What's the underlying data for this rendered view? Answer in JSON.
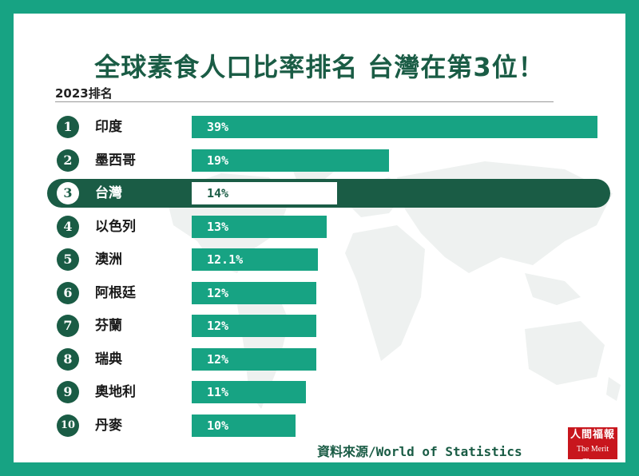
{
  "title": "全球素食人口比率排名 台灣在第3位！",
  "subtitle": "2023排名",
  "source": "資料來源/World of Statistics",
  "logo": {
    "cn": "人間福報",
    "en": "The Merit Times"
  },
  "colors": {
    "background": "#17a383",
    "dark": "#1a5c45",
    "bar": "#17a383",
    "highlight_bar": "#ffffff"
  },
  "chart_data": {
    "type": "bar",
    "orientation": "horizontal",
    "highlighted_category": "台灣",
    "ranks": [
      "1",
      "2",
      "3",
      "4",
      "5",
      "6",
      "7",
      "8",
      "9",
      "10"
    ],
    "categories": [
      "印度",
      "墨西哥",
      "台灣",
      "以色列",
      "澳洲",
      "阿根廷",
      "芬蘭",
      "瑞典",
      "奧地利",
      "丹麥"
    ],
    "values": [
      39,
      19,
      14,
      13,
      12.1,
      12,
      12,
      12,
      11,
      10
    ],
    "value_labels": [
      "39%",
      "19%",
      "14%",
      "13%",
      "12.1%",
      "12%",
      "12%",
      "12%",
      "11%",
      "10%"
    ],
    "xlim": [
      0,
      39
    ]
  }
}
